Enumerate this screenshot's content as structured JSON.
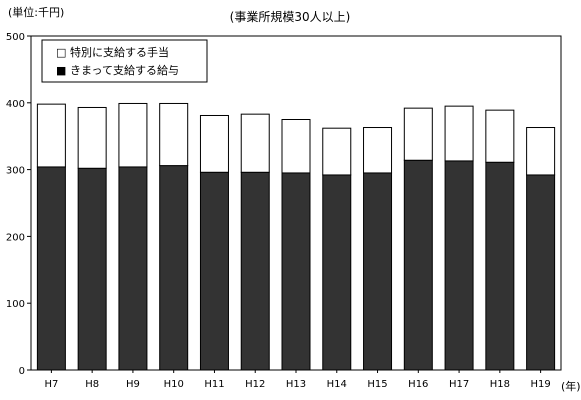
{
  "chart_data": {
    "type": "bar",
    "stacked": true,
    "unit_label": "(単位:千円)",
    "title": "(事業所規模30人以上)",
    "categories": [
      "H7",
      "H8",
      "H9",
      "H10",
      "H11",
      "H12",
      "H13",
      "H14",
      "H15",
      "H16",
      "H17",
      "H18",
      "H19"
    ],
    "x_unit_label": "(年)",
    "y_ticks": [
      "0",
      "100",
      "200",
      "300",
      "400",
      "500"
    ],
    "ylim": [
      0,
      500
    ],
    "grid": false,
    "legend_position": "top-left",
    "series": [
      {
        "name": "きまって支給する給与",
        "color": "#333333",
        "legend_marker": "■",
        "values": [
          304,
          302,
          304,
          306,
          296,
          296,
          295,
          292,
          295,
          314,
          313,
          311,
          292
        ]
      },
      {
        "name": "特別に支給する手当",
        "color": "#ffffff",
        "legend_marker": "□",
        "values": [
          94,
          91,
          95,
          93,
          85,
          87,
          80,
          70,
          68,
          78,
          82,
          78,
          71
        ]
      }
    ]
  }
}
